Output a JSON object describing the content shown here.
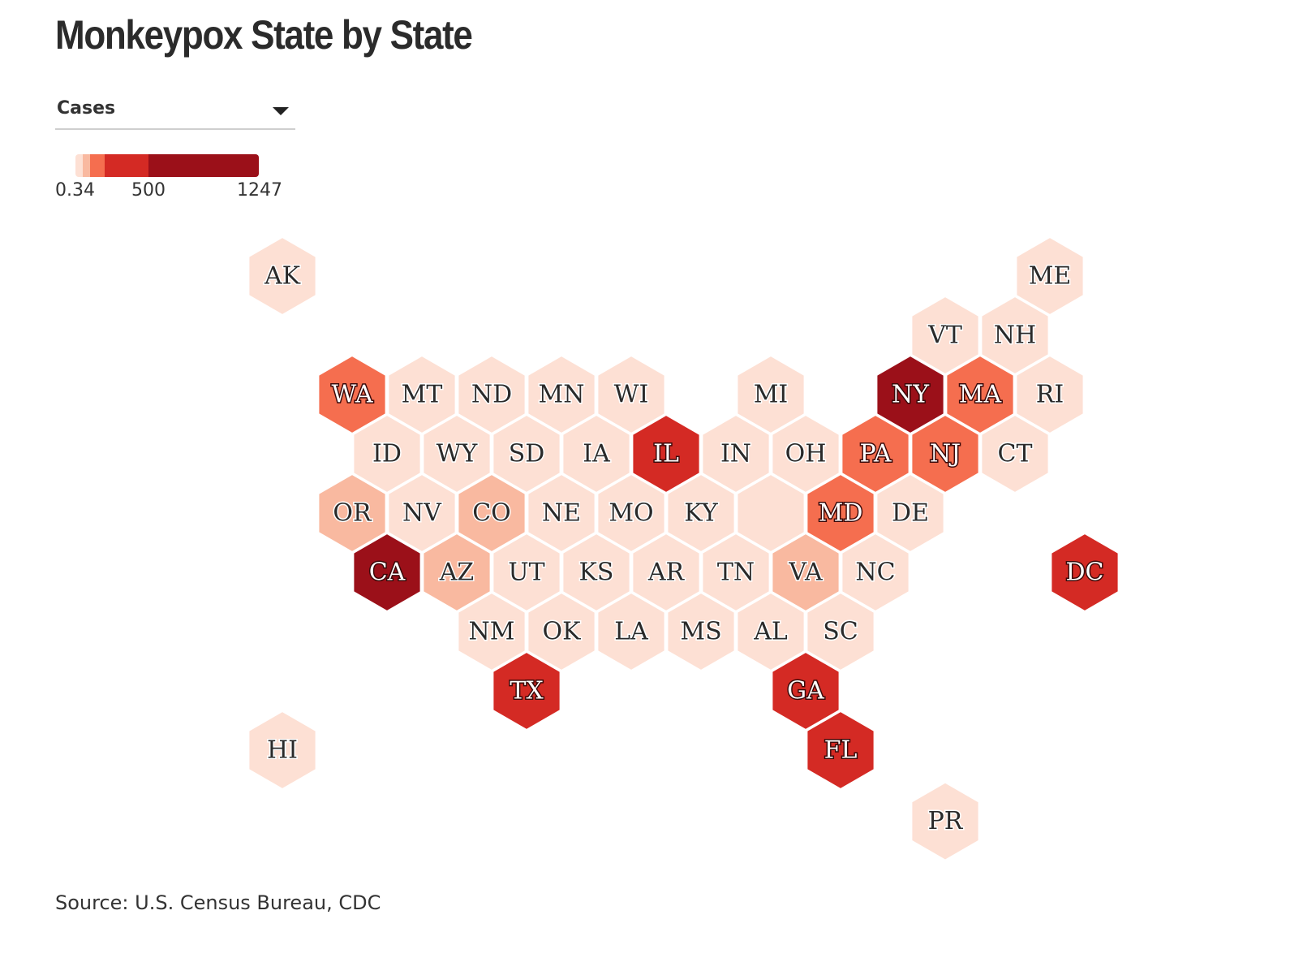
{
  "title": "Monkeypox State by State",
  "metric_select": {
    "selected": "Cases"
  },
  "legend": {
    "min_label": "0.34",
    "mid_label": "500",
    "max_label": "1247",
    "bands": [
      "#fde0d4",
      "#f9b9a0",
      "#f56e4f",
      "#d42a24",
      "#9b1019"
    ]
  },
  "colors": {
    "very_low": "#fde0d4",
    "low": "#f9b9a0",
    "medium": "#f56e4f",
    "high": "#d42a24",
    "very_high": "#9b1019"
  },
  "source": "Source: U.S. Census Bureau, CDC",
  "chart_data": {
    "type": "hexbin-map",
    "metric": "Cases",
    "scale_min": 0.34,
    "scale_max": 1247,
    "states": [
      {
        "code": "AK",
        "row": 0,
        "col": 0,
        "level": "very_low"
      },
      {
        "code": "ME",
        "row": 0,
        "col": 11,
        "level": "very_low"
      },
      {
        "code": "VT",
        "row": 1,
        "col": 9.5,
        "level": "very_low"
      },
      {
        "code": "NH",
        "row": 1,
        "col": 10.5,
        "level": "very_low"
      },
      {
        "code": "WA",
        "row": 2,
        "col": 1,
        "level": "medium"
      },
      {
        "code": "MT",
        "row": 2,
        "col": 2,
        "level": "very_low"
      },
      {
        "code": "ND",
        "row": 2,
        "col": 3,
        "level": "very_low"
      },
      {
        "code": "MN",
        "row": 2,
        "col": 4,
        "level": "very_low"
      },
      {
        "code": "WI",
        "row": 2,
        "col": 5,
        "level": "very_low"
      },
      {
        "code": "MI",
        "row": 2,
        "col": 7,
        "level": "very_low"
      },
      {
        "code": "NY",
        "row": 2,
        "col": 9,
        "level": "very_high"
      },
      {
        "code": "MA",
        "row": 2,
        "col": 10,
        "level": "medium"
      },
      {
        "code": "RI",
        "row": 2,
        "col": 11,
        "level": "very_low"
      },
      {
        "code": "ID",
        "row": 3,
        "col": 1.5,
        "level": "very_low"
      },
      {
        "code": "WY",
        "row": 3,
        "col": 2.5,
        "level": "very_low"
      },
      {
        "code": "SD",
        "row": 3,
        "col": 3.5,
        "level": "very_low"
      },
      {
        "code": "IA",
        "row": 3,
        "col": 4.5,
        "level": "very_low"
      },
      {
        "code": "IL",
        "row": 3,
        "col": 5.5,
        "level": "high"
      },
      {
        "code": "IN",
        "row": 3,
        "col": 6.5,
        "level": "very_low"
      },
      {
        "code": "OH",
        "row": 3,
        "col": 7.5,
        "level": "very_low"
      },
      {
        "code": "PA",
        "row": 3,
        "col": 8.5,
        "level": "medium"
      },
      {
        "code": "NJ",
        "row": 3,
        "col": 9.5,
        "level": "medium"
      },
      {
        "code": "CT",
        "row": 3,
        "col": 10.5,
        "level": "very_low"
      },
      {
        "code": "OR",
        "row": 4,
        "col": 1,
        "level": "low"
      },
      {
        "code": "NV",
        "row": 4,
        "col": 2,
        "level": "very_low"
      },
      {
        "code": "CO",
        "row": 4,
        "col": 3,
        "level": "low"
      },
      {
        "code": "NE",
        "row": 4,
        "col": 4,
        "level": "very_low"
      },
      {
        "code": "MO",
        "row": 4,
        "col": 5,
        "level": "very_low"
      },
      {
        "code": "KY",
        "row": 4,
        "col": 6,
        "level": "very_low"
      },
      {
        "code": "",
        "row": 4,
        "col": 7,
        "level": "very_low"
      },
      {
        "code": "MD",
        "row": 4,
        "col": 8,
        "level": "medium"
      },
      {
        "code": "DE",
        "row": 4,
        "col": 9,
        "level": "very_low"
      },
      {
        "code": "CA",
        "row": 5,
        "col": 1.5,
        "level": "very_high"
      },
      {
        "code": "AZ",
        "row": 5,
        "col": 2.5,
        "level": "low"
      },
      {
        "code": "UT",
        "row": 5,
        "col": 3.5,
        "level": "very_low"
      },
      {
        "code": "KS",
        "row": 5,
        "col": 4.5,
        "level": "very_low"
      },
      {
        "code": "AR",
        "row": 5,
        "col": 5.5,
        "level": "very_low"
      },
      {
        "code": "TN",
        "row": 5,
        "col": 6.5,
        "level": "very_low"
      },
      {
        "code": "VA",
        "row": 5,
        "col": 7.5,
        "level": "low"
      },
      {
        "code": "NC",
        "row": 5,
        "col": 8.5,
        "level": "very_low"
      },
      {
        "code": "DC",
        "row": 5,
        "col": 11.5,
        "level": "high"
      },
      {
        "code": "NM",
        "row": 6,
        "col": 3,
        "level": "very_low"
      },
      {
        "code": "OK",
        "row": 6,
        "col": 4,
        "level": "very_low"
      },
      {
        "code": "LA",
        "row": 6,
        "col": 5,
        "level": "very_low"
      },
      {
        "code": "MS",
        "row": 6,
        "col": 6,
        "level": "very_low"
      },
      {
        "code": "AL",
        "row": 6,
        "col": 7,
        "level": "very_low"
      },
      {
        "code": "SC",
        "row": 6,
        "col": 8,
        "level": "very_low"
      },
      {
        "code": "TX",
        "row": 7,
        "col": 3.5,
        "level": "high"
      },
      {
        "code": "GA",
        "row": 7,
        "col": 7.5,
        "level": "high"
      },
      {
        "code": "HI",
        "row": 8,
        "col": 0,
        "level": "very_low"
      },
      {
        "code": "FL",
        "row": 8,
        "col": 8,
        "level": "high"
      },
      {
        "code": "PR",
        "row": 9.2,
        "col": 9.5,
        "level": "very_low"
      }
    ]
  }
}
